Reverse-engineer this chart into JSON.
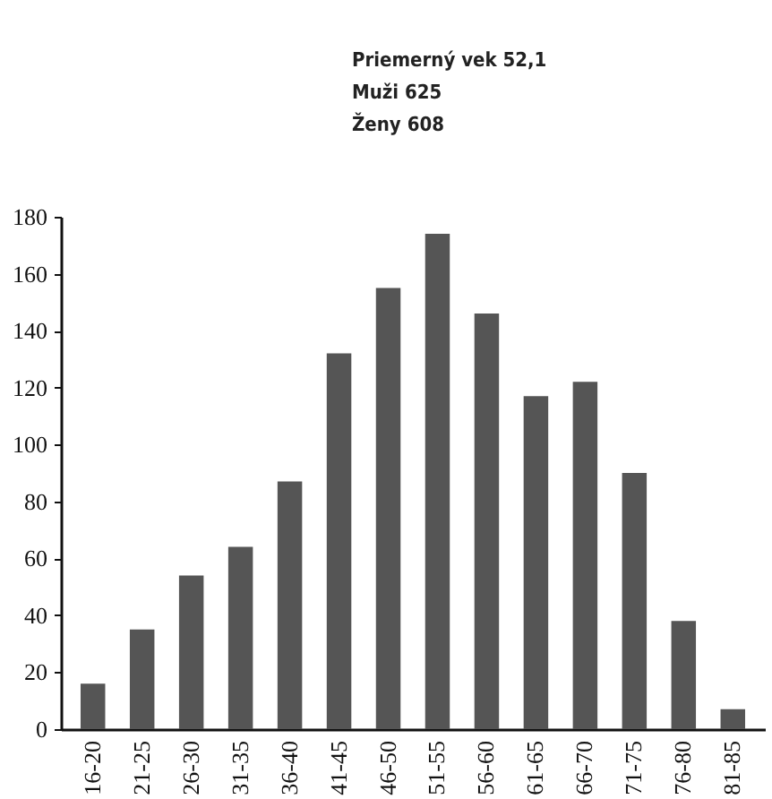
{
  "chart_data": {
    "type": "bar",
    "annotations": [
      "Priemerný vek 52,1",
      "Muži 625",
      "Ženy 608"
    ],
    "categories": [
      "16-20",
      "21-25",
      "26-30",
      "31-35",
      "36-40",
      "41-45",
      "46-50",
      "51-55",
      "56-60",
      "61-65",
      "66-70",
      "71-75",
      "76-80",
      "81-85"
    ],
    "values": [
      16,
      35,
      54,
      64,
      87,
      132,
      155,
      174,
      146,
      117,
      122,
      90,
      38,
      7
    ],
    "color": "#555555",
    "ylim": [
      0,
      180
    ],
    "yticks": [
      0,
      20,
      40,
      60,
      80,
      100,
      120,
      140,
      160,
      180
    ],
    "grid": false
  }
}
